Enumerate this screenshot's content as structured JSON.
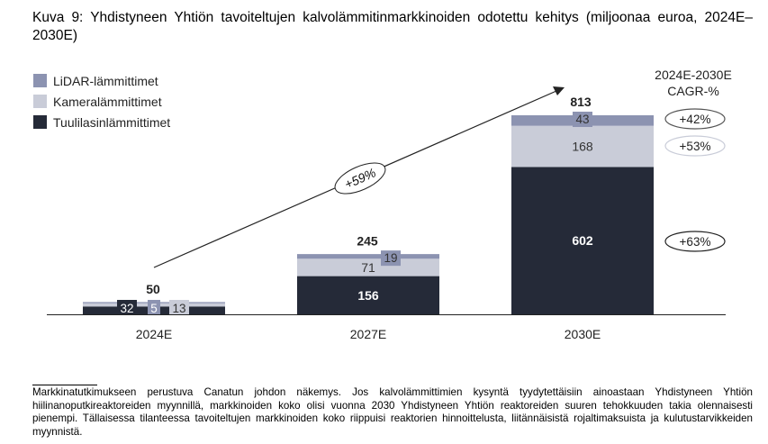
{
  "title": "Kuva 9: Yhdistyneen Yhtiön tavoiteltujen kalvolämmitinmarkkinoiden odotettu kehitys (miljoonaa euroa, 2024E–2030E)",
  "chart_data": {
    "type": "bar",
    "stacked": true,
    "categories": [
      "2024E",
      "2027E",
      "2030E"
    ],
    "series": [
      {
        "name": "Tuulilasinlämmittimet",
        "values": [
          32,
          156,
          602
        ],
        "color": "#252a38"
      },
      {
        "name": "Kameralämmittimet",
        "values": [
          13,
          71,
          168
        ],
        "color": "#c9ccd8"
      },
      {
        "name": "LiDAR-lämmittimet",
        "values": [
          5,
          19,
          43
        ],
        "color": "#8c93b1"
      }
    ],
    "totals": [
      50,
      245,
      813
    ],
    "ylim": [
      0,
      813
    ],
    "legend_position": "top-left",
    "legend_order": [
      "LiDAR-lämmittimet",
      "Kameralämmittimet",
      "Tuulilasinlämmittimet"
    ],
    "overall_cagr_label": "+59%",
    "cagr_header": [
      "2024E-2030E",
      "CAGR-%"
    ],
    "cagr_by_series": {
      "LiDAR-lämmittimet": "+42%",
      "Kameralämmittimet": "+53%",
      "Tuulilasinlämmittimet": "+63%"
    }
  },
  "footnote": "Markkinatutkimukseen perustuva Canatun johdon näkemys. Jos kalvolämmittimien kysyntä tyydytettäisiin ainoastaan Yhdistyneen Yhtiön hiilinanoputkireaktoreiden myynnillä, markkinoiden koko olisi vuonna 2030 Yhdistyneen Yhtiön reaktoreiden suuren tehokkuuden takia olennaisesti pienempi. Tällaisessa tilanteessa tavoiteltujen markkinoiden koko riippuisi reaktorien hinnoittelusta, liitännäisistä rojaltimaksuista ja kulutustarvikkeiden myynnistä."
}
